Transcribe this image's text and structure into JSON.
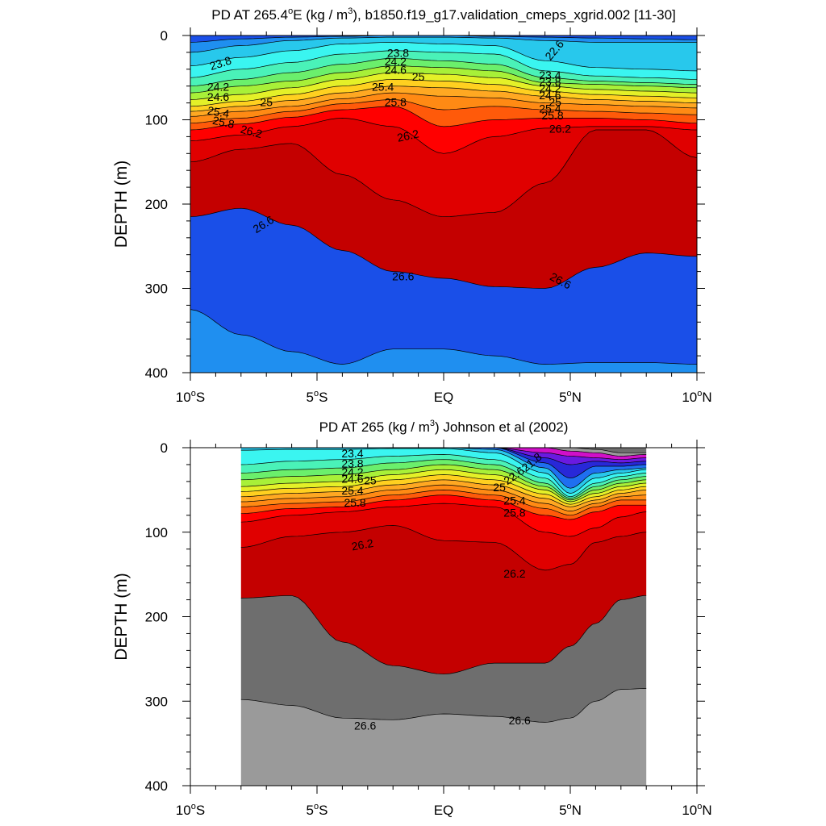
{
  "chart_data": [
    {
      "type": "contour",
      "title": {
        "prefix": "PD AT 265.4",
        "deg": "o",
        "mid": "E (kg / m",
        "sup": "3",
        "suffix": "), b1850.f19_g17.validation_cmeps_xgrid.002 [11-30]"
      },
      "ylabel": "DEPTH (m)",
      "xlim": [
        -10,
        10
      ],
      "ylim": [
        400,
        0
      ],
      "yticks": [
        "0",
        "100",
        "200",
        "300",
        "400"
      ],
      "xticks": [
        {
          "num": "10",
          "deg": "o",
          "hem": "S"
        },
        {
          "num": "5",
          "deg": "o",
          "hem": "S"
        },
        {
          "num": "EQ",
          "deg": "",
          "hem": ""
        },
        {
          "num": "5",
          "deg": "o",
          "hem": "N"
        },
        {
          "num": "10",
          "deg": "o",
          "hem": "N"
        }
      ],
      "data_xrange": [
        -10,
        10
      ],
      "levels": [
        22.6,
        23.0,
        23.4,
        23.8,
        24.2,
        24.6,
        25.0,
        25.4,
        25.8,
        26.2,
        26.6,
        27.0
      ],
      "fill_colors": [
        "#1a4fe8",
        "#1f8ff0",
        "#28c8ec",
        "#3af5f0",
        "#4af2b8",
        "#6bef6c",
        "#a8f038",
        "#e4f028",
        "#ffd020",
        "#ffa822",
        "#ff8a14",
        "#ff5a0a",
        "#ff0000",
        "#e00000",
        "#c40000"
      ],
      "profiles": [
        {
          "x": -10,
          "d": [
            8,
            20,
            36,
            50,
            60,
            68,
            76,
            84,
            90,
            96,
            104,
            112,
            125,
            150,
            215,
            325
          ]
        },
        {
          "x": -8,
          "d": [
            4,
            12,
            26,
            40,
            52,
            60,
            70,
            78,
            84,
            90,
            98,
            105,
            118,
            135,
            205,
            355
          ]
        },
        {
          "x": -6,
          "d": [
            2,
            6,
            18,
            32,
            44,
            54,
            62,
            70,
            77,
            84,
            90,
            97,
            108,
            128,
            225,
            375
          ]
        },
        {
          "x": -4,
          "d": [
            1,
            3,
            10,
            22,
            34,
            44,
            52,
            60,
            68,
            75,
            81,
            88,
            98,
            165,
            255,
            390
          ]
        },
        {
          "x": -2,
          "d": [
            0,
            2,
            8,
            18,
            27,
            36,
            44,
            52,
            60,
            68,
            76,
            84,
            108,
            195,
            280,
            372
          ]
        },
        {
          "x": 0,
          "d": [
            0,
            2,
            10,
            20,
            30,
            38,
            46,
            54,
            62,
            72,
            88,
            108,
            140,
            215,
            288,
            372
          ]
        },
        {
          "x": 2,
          "d": [
            1,
            3,
            12,
            22,
            34,
            42,
            50,
            58,
            66,
            74,
            84,
            100,
            120,
            210,
            298,
            380
          ]
        },
        {
          "x": 4,
          "d": [
            2,
            6,
            30,
            42,
            50,
            56,
            60,
            66,
            72,
            80,
            88,
            98,
            110,
            175,
            300,
            390
          ]
        },
        {
          "x": 6,
          "d": [
            3,
            8,
            38,
            48,
            54,
            58,
            64,
            70,
            76,
            82,
            90,
            98,
            108,
            112,
            275,
            388
          ]
        },
        {
          "x": 8,
          "d": [
            4,
            8,
            40,
            50,
            56,
            60,
            66,
            72,
            78,
            84,
            92,
            100,
            108,
            112,
            258,
            388
          ]
        },
        {
          "x": 10,
          "d": [
            5,
            8,
            42,
            52,
            58,
            62,
            68,
            74,
            80,
            86,
            94,
            104,
            112,
            145,
            262,
            390
          ]
        }
      ],
      "contour_labels": [
        {
          "text": "23.8",
          "x": -8.8,
          "y": 34,
          "rot": 18
        },
        {
          "text": "24.2",
          "x": -8.9,
          "y": 62,
          "rot": 0
        },
        {
          "text": "24.6",
          "x": -8.9,
          "y": 74,
          "rot": 0
        },
        {
          "text": "25",
          "x": -7.0,
          "y": 80,
          "rot": 0
        },
        {
          "text": "25.4",
          "x": -8.9,
          "y": 92,
          "rot": -10
        },
        {
          "text": "25.8",
          "x": -8.7,
          "y": 104,
          "rot": -12
        },
        {
          "text": "26.2",
          "x": -7.6,
          "y": 115,
          "rot": -15
        },
        {
          "text": "26.6",
          "x": -7.1,
          "y": 225,
          "rot": 32
        },
        {
          "text": "23.8",
          "x": -1.8,
          "y": 22,
          "rot": 0
        },
        {
          "text": "24.2",
          "x": -1.9,
          "y": 32,
          "rot": 0
        },
        {
          "text": "24.6",
          "x": -1.9,
          "y": 42,
          "rot": 0
        },
        {
          "text": "25",
          "x": -1.0,
          "y": 50,
          "rot": 0
        },
        {
          "text": "25.4",
          "x": -2.4,
          "y": 62,
          "rot": 0
        },
        {
          "text": "25.8",
          "x": -1.9,
          "y": 80,
          "rot": 0
        },
        {
          "text": "26.2",
          "x": -1.4,
          "y": 120,
          "rot": 12
        },
        {
          "text": "26.6",
          "x": -1.6,
          "y": 287,
          "rot": 0
        },
        {
          "text": "22.6",
          "x": 4.4,
          "y": 18,
          "rot": 50
        },
        {
          "text": "23.4",
          "x": 4.2,
          "y": 48,
          "rot": 0
        },
        {
          "text": "23.8",
          "x": 4.2,
          "y": 56,
          "rot": 0
        },
        {
          "text": "24.2",
          "x": 4.2,
          "y": 64,
          "rot": 0
        },
        {
          "text": "24.6",
          "x": 4.2,
          "y": 72,
          "rot": 0
        },
        {
          "text": "25",
          "x": 4.4,
          "y": 80,
          "rot": 0
        },
        {
          "text": "25.4",
          "x": 4.2,
          "y": 88,
          "rot": 0
        },
        {
          "text": "25.8",
          "x": 4.3,
          "y": 96,
          "rot": 0
        },
        {
          "text": "26.2",
          "x": 4.6,
          "y": 112,
          "rot": 0
        },
        {
          "text": "26.6",
          "x": 4.6,
          "y": 292,
          "rot": -28
        }
      ]
    },
    {
      "type": "contour",
      "title": {
        "prefix": "PD AT 265",
        "deg": "",
        "mid": " (kg / m",
        "sup": "3",
        "suffix": ") Johnson et al (2002)"
      },
      "ylabel": "DEPTH (m)",
      "xlim": [
        -10,
        10
      ],
      "ylim": [
        400,
        0
      ],
      "yticks": [
        "0",
        "100",
        "200",
        "300",
        "400"
      ],
      "xticks": [
        {
          "num": "10",
          "deg": "o",
          "hem": "S"
        },
        {
          "num": "5",
          "deg": "o",
          "hem": "S"
        },
        {
          "num": "EQ",
          "deg": "",
          "hem": ""
        },
        {
          "num": "5",
          "deg": "o",
          "hem": "N"
        },
        {
          "num": "10",
          "deg": "o",
          "hem": "N"
        }
      ],
      "data_xrange": [
        -8,
        8
      ],
      "levels": [
        21.0,
        21.4,
        21.8,
        22.2,
        22.6,
        23.0,
        23.4,
        23.8,
        24.2,
        24.6,
        25.0,
        25.4,
        25.8,
        26.2,
        26.6,
        27.0
      ],
      "fill_colors": [
        "#6e6e6e",
        "#9a9a9a",
        "#d010c8",
        "#6a1ae0",
        "#2828d8",
        "#1f6ff0",
        "#28c8ec",
        "#3af5f0",
        "#4af2b8",
        "#6bef6c",
        "#a8f038",
        "#e4f028",
        "#ffd020",
        "#ffa822",
        "#ff8a14",
        "#ff5a0a",
        "#ff0000",
        "#e00000",
        "#c40000"
      ],
      "profiles": [
        {
          "x": -8,
          "d": [
            0,
            0,
            0,
            0,
            0,
            0,
            3,
            20,
            30,
            38,
            46,
            52,
            58,
            64,
            70,
            78,
            88,
            118,
            178,
            298
          ]
        },
        {
          "x": -6,
          "d": [
            0,
            0,
            0,
            0,
            0,
            0,
            2,
            16,
            26,
            34,
            42,
            48,
            54,
            60,
            66,
            72,
            80,
            105,
            175,
            305
          ]
        },
        {
          "x": -4,
          "d": [
            0,
            0,
            0,
            0,
            0,
            0,
            2,
            14,
            24,
            32,
            40,
            46,
            52,
            58,
            64,
            70,
            76,
            100,
            230,
            320
          ]
        },
        {
          "x": -2,
          "d": [
            0,
            0,
            0,
            0,
            0,
            0,
            1,
            10,
            18,
            26,
            32,
            38,
            44,
            50,
            56,
            62,
            70,
            92,
            258,
            322
          ]
        },
        {
          "x": 0,
          "d": [
            0,
            0,
            0,
            0,
            0,
            0,
            1,
            8,
            14,
            20,
            26,
            32,
            38,
            44,
            50,
            56,
            66,
            110,
            268,
            315
          ]
        },
        {
          "x": 2,
          "d": [
            0,
            0,
            0,
            0,
            0,
            2,
            6,
            14,
            20,
            26,
            32,
            38,
            44,
            50,
            56,
            62,
            70,
            112,
            255,
            318
          ]
        },
        {
          "x": 4,
          "d": [
            0,
            0,
            6,
            12,
            18,
            24,
            30,
            36,
            42,
            46,
            50,
            55,
            60,
            66,
            72,
            80,
            100,
            145,
            255,
            325
          ]
        },
        {
          "x": 5,
          "d": [
            0,
            4,
            10,
            20,
            36,
            48,
            54,
            58,
            60,
            62,
            64,
            67,
            70,
            75,
            80,
            85,
            105,
            138,
            235,
            320
          ]
        },
        {
          "x": 6,
          "d": [
            2,
            6,
            12,
            16,
            22,
            30,
            36,
            42,
            46,
            50,
            54,
            58,
            62,
            66,
            70,
            76,
            95,
            112,
            208,
            300
          ]
        },
        {
          "x": 7,
          "d": [
            6,
            10,
            14,
            18,
            22,
            26,
            30,
            34,
            38,
            42,
            46,
            50,
            54,
            58,
            62,
            68,
            82,
            105,
            180,
            286
          ]
        },
        {
          "x": 8,
          "d": [
            6,
            8,
            12,
            16,
            20,
            24,
            26,
            30,
            34,
            38,
            42,
            46,
            50,
            56,
            62,
            68,
            76,
            100,
            175,
            285
          ]
        }
      ],
      "contour_labels": [
        {
          "text": "23.4",
          "x": -3.6,
          "y": 8,
          "rot": 0
        },
        {
          "text": "23.8",
          "x": -3.6,
          "y": 20,
          "rot": 0
        },
        {
          "text": "24.2",
          "x": -3.6,
          "y": 30,
          "rot": 0
        },
        {
          "text": "24.6",
          "x": -3.6,
          "y": 38,
          "rot": 0
        },
        {
          "text": "25",
          "x": -2.9,
          "y": 40,
          "rot": 0
        },
        {
          "text": "25.4",
          "x": -3.6,
          "y": 52,
          "rot": 0
        },
        {
          "text": "25.8",
          "x": -3.5,
          "y": 66,
          "rot": 0
        },
        {
          "text": "26.2",
          "x": -3.2,
          "y": 116,
          "rot": 10
        },
        {
          "text": "26.6",
          "x": -3.1,
          "y": 330,
          "rot": 0
        },
        {
          "text": "21.8",
          "x": 3.5,
          "y": 18,
          "rot": 40
        },
        {
          "text": "22.6",
          "x": 2.8,
          "y": 34,
          "rot": 35
        },
        {
          "text": "25",
          "x": 2.2,
          "y": 48,
          "rot": 0
        },
        {
          "text": "25.4",
          "x": 2.8,
          "y": 64,
          "rot": 0
        },
        {
          "text": "25.8",
          "x": 2.8,
          "y": 78,
          "rot": 0
        },
        {
          "text": "26.2",
          "x": 2.8,
          "y": 150,
          "rot": 0
        },
        {
          "text": "26.6",
          "x": 3.0,
          "y": 324,
          "rot": 0
        }
      ]
    }
  ]
}
